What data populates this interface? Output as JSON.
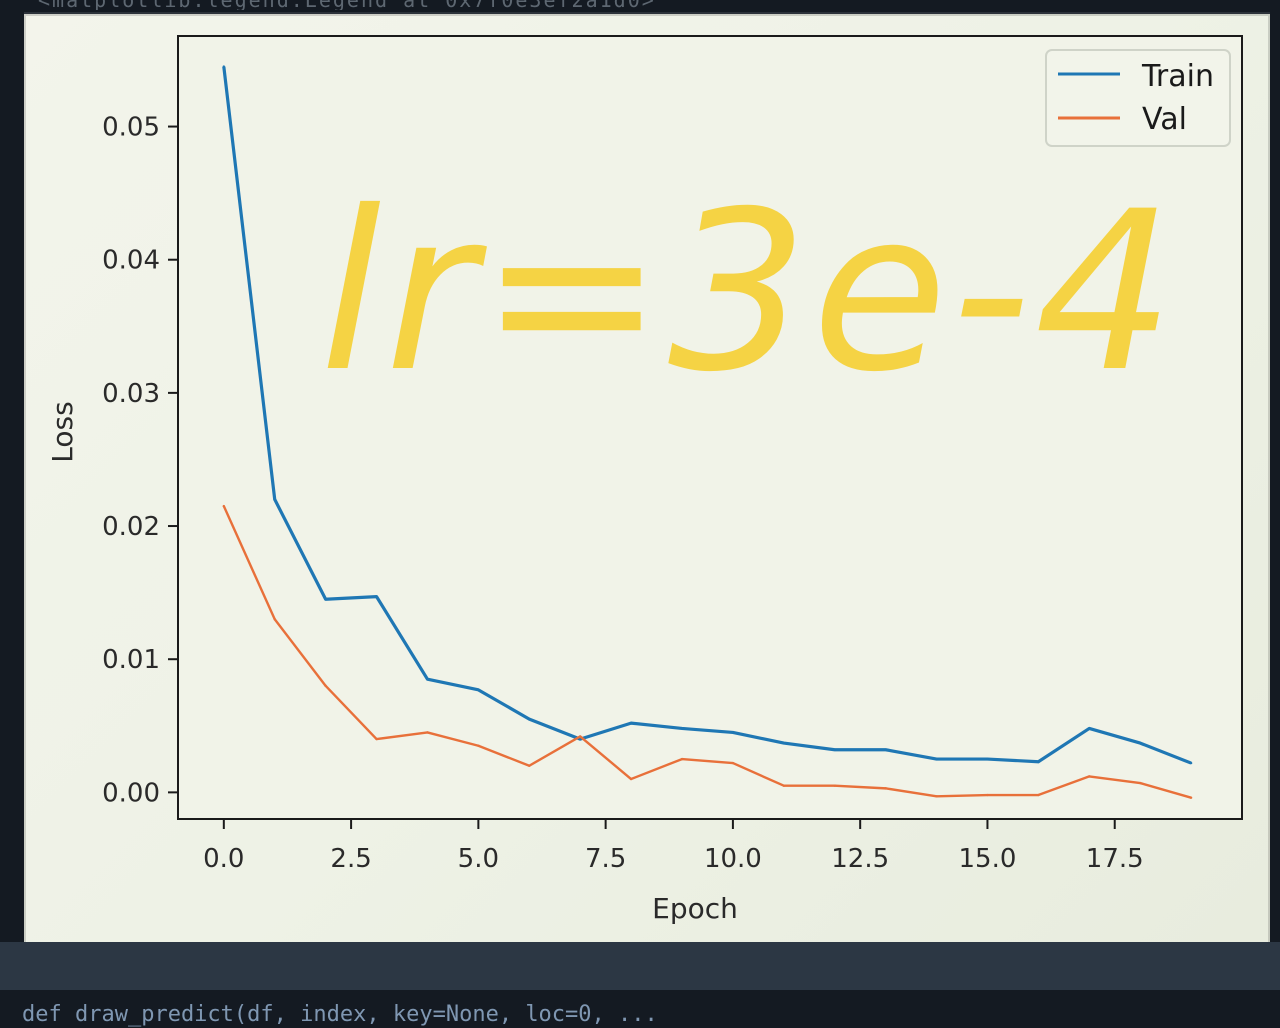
{
  "terminal": {
    "top_output": "<matplotlib.legend.Legend at 0x7f0e3ef2a1d0>",
    "code_line": "def draw_predict(df, index, key=None, loc=0, ..."
  },
  "annotation": {
    "text": "lr=3e-4",
    "color": "#f5cf32"
  },
  "chart_data": {
    "type": "line",
    "title": "",
    "xlabel": "Epoch",
    "ylabel": "Loss",
    "xlim": [
      -0.9,
      20.0
    ],
    "ylim": [
      -0.002,
      0.0568
    ],
    "x_ticks": [
      0.0,
      2.5,
      5.0,
      7.5,
      10.0,
      12.5,
      15.0,
      17.5
    ],
    "x_tick_labels": [
      "0.0",
      "2.5",
      "5.0",
      "7.5",
      "10.0",
      "12.5",
      "15.0",
      "17.5"
    ],
    "y_ticks": [
      0.0,
      0.01,
      0.02,
      0.03,
      0.04,
      0.05
    ],
    "y_tick_labels": [
      "0.00",
      "0.01",
      "0.02",
      "0.03",
      "0.04",
      "0.05"
    ],
    "grid": false,
    "legend_position": "top-right",
    "x": [
      0,
      1,
      2,
      3,
      4,
      5,
      6,
      7,
      8,
      9,
      10,
      11,
      12,
      13,
      14,
      15,
      16,
      17,
      18,
      19
    ],
    "series": [
      {
        "name": "Train",
        "color": "#1f77b4",
        "values": [
          0.0545,
          0.022,
          0.0145,
          0.0147,
          0.0085,
          0.0077,
          0.0055,
          0.004,
          0.0052,
          0.0048,
          0.0045,
          0.0037,
          0.0032,
          0.0032,
          0.0025,
          0.0025,
          0.0023,
          0.0048,
          0.0037,
          0.0022
        ]
      },
      {
        "name": "Val",
        "color": "#e8703a",
        "values": [
          0.0215,
          0.013,
          0.008,
          0.004,
          0.0045,
          0.0035,
          0.002,
          0.0042,
          0.001,
          0.0025,
          0.0022,
          0.0005,
          0.0005,
          0.0003,
          -0.0003,
          -0.0002,
          -0.0002,
          0.0012,
          0.0007,
          -0.0004
        ]
      }
    ]
  }
}
